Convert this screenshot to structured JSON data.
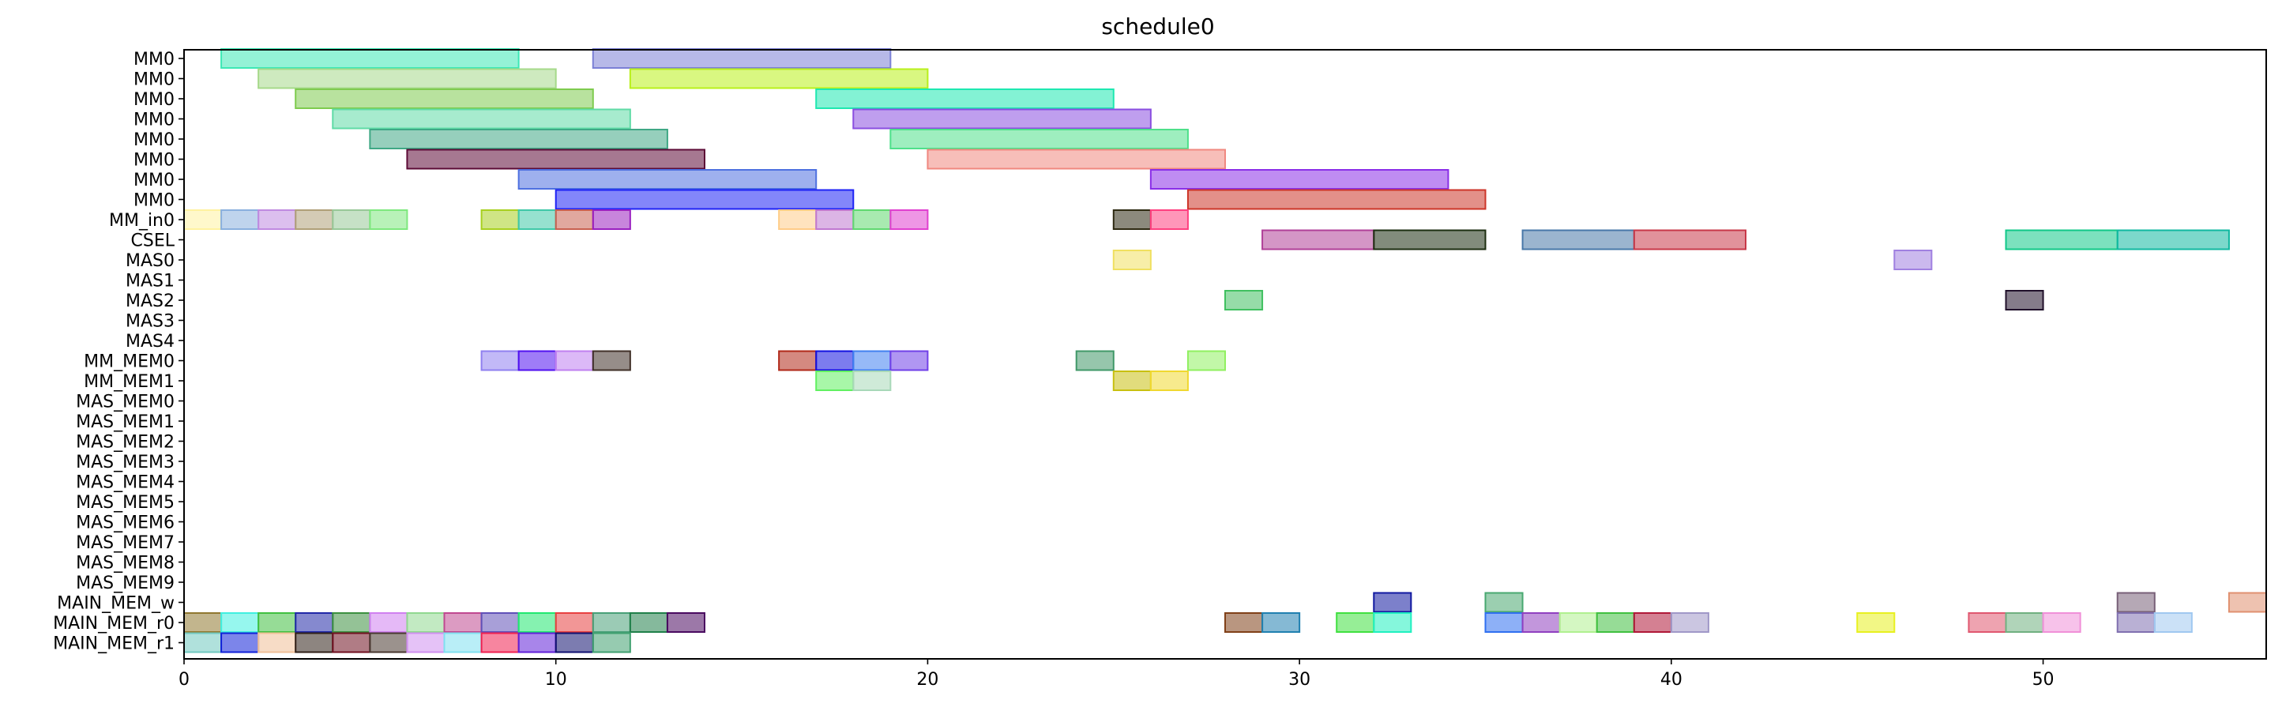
{
  "chart_data": {
    "type": "gantt",
    "title": "schedule0",
    "xlabel": "",
    "ylabel": "",
    "xlim": [
      0,
      56
    ],
    "grid": false,
    "x_ticks": [
      0,
      10,
      20,
      30,
      40,
      50
    ],
    "rows": [
      "MM0",
      "MM0",
      "MM0",
      "MM0",
      "MM0",
      "MM0",
      "MM0",
      "MM0",
      "MM_in0",
      "CSEL",
      "MAS0",
      "MAS1",
      "MAS2",
      "MAS3",
      "MAS4",
      "MM_MEM0",
      "MM_MEM1",
      "MAS_MEM0",
      "MAS_MEM1",
      "MAS_MEM2",
      "MAS_MEM3",
      "MAS_MEM4",
      "MAS_MEM5",
      "MAS_MEM6",
      "MAS_MEM7",
      "MAS_MEM8",
      "MAS_MEM9",
      "MAIN_MEM_w",
      "MAIN_MEM_r0",
      "MAIN_MEM_r1"
    ],
    "tasks": [
      {
        "row": 0,
        "start": 1,
        "end": 9,
        "color": "#3de8b5"
      },
      {
        "row": 0,
        "start": 11,
        "end": 19,
        "color": "#7b80d6"
      },
      {
        "row": 1,
        "start": 2,
        "end": 10,
        "color": "#a6d98a"
      },
      {
        "row": 1,
        "start": 12,
        "end": 20,
        "color": "#b9f01a"
      },
      {
        "row": 2,
        "start": 3,
        "end": 11,
        "color": "#7ecb4e"
      },
      {
        "row": 2,
        "start": 17,
        "end": 25,
        "color": "#1ee8b0"
      },
      {
        "row": 3,
        "start": 4,
        "end": 12,
        "color": "#5fdba6"
      },
      {
        "row": 3,
        "start": 18,
        "end": 26,
        "color": "#8a4ee0"
      },
      {
        "row": 4,
        "start": 5,
        "end": 13,
        "color": "#3fa885"
      },
      {
        "row": 4,
        "start": 19,
        "end": 27,
        "color": "#4ee08a"
      },
      {
        "row": 5,
        "start": 6,
        "end": 14,
        "color": "#5c0a36"
      },
      {
        "row": 5,
        "start": 20,
        "end": 28,
        "color": "#f08880"
      },
      {
        "row": 6,
        "start": 9,
        "end": 17,
        "color": "#4e70e0"
      },
      {
        "row": 6,
        "start": 26,
        "end": 34,
        "color": "#8a2ee8"
      },
      {
        "row": 7,
        "start": 10,
        "end": 18,
        "color": "#1e22f5"
      },
      {
        "row": 7,
        "start": 27,
        "end": 35,
        "color": "#cc3428"
      },
      {
        "row": 8,
        "start": 0,
        "end": 1,
        "color": "#fff2a0"
      },
      {
        "row": 8,
        "start": 1,
        "end": 2,
        "color": "#8ab0de"
      },
      {
        "row": 8,
        "start": 2,
        "end": 3,
        "color": "#c08ae0"
      },
      {
        "row": 8,
        "start": 3,
        "end": 4,
        "color": "#b0a078"
      },
      {
        "row": 8,
        "start": 4,
        "end": 5,
        "color": "#98c898"
      },
      {
        "row": 8,
        "start": 5,
        "end": 6,
        "color": "#7ee87e"
      },
      {
        "row": 8,
        "start": 8,
        "end": 9,
        "color": "#a8d020"
      },
      {
        "row": 8,
        "start": 9,
        "end": 10,
        "color": "#40c8a8"
      },
      {
        "row": 8,
        "start": 10,
        "end": 11,
        "color": "#c86050"
      },
      {
        "row": 8,
        "start": 11,
        "end": 12,
        "color": "#9a20c0"
      },
      {
        "row": 8,
        "start": 16,
        "end": 17,
        "color": "#ffcc88"
      },
      {
        "row": 8,
        "start": 17,
        "end": 18,
        "color": "#c078d0"
      },
      {
        "row": 8,
        "start": 18,
        "end": 19,
        "color": "#60d870"
      },
      {
        "row": 8,
        "start": 19,
        "end": 20,
        "color": "#e040d0"
      },
      {
        "row": 8,
        "start": 25,
        "end": 26,
        "color": "#2e2a12"
      },
      {
        "row": 8,
        "start": 26,
        "end": 27,
        "color": "#ff4080"
      },
      {
        "row": 9,
        "start": 29,
        "end": 32,
        "color": "#b04098"
      },
      {
        "row": 9,
        "start": 32,
        "end": 35,
        "color": "#1c2e10"
      },
      {
        "row": 9,
        "start": 36,
        "end": 39,
        "color": "#4878a8"
      },
      {
        "row": 9,
        "start": 39,
        "end": 42,
        "color": "#c83848"
      },
      {
        "row": 9,
        "start": 49,
        "end": 52,
        "color": "#10c888"
      },
      {
        "row": 9,
        "start": 52,
        "end": 55,
        "color": "#10b8a0"
      },
      {
        "row": 10,
        "start": 25,
        "end": 26,
        "color": "#f0e060"
      },
      {
        "row": 10,
        "start": 46,
        "end": 47,
        "color": "#a080e0"
      },
      {
        "row": 12,
        "start": 28,
        "end": 29,
        "color": "#40c060"
      },
      {
        "row": 12,
        "start": 49,
        "end": 50,
        "color": "#20102a"
      },
      {
        "row": 15,
        "start": 8,
        "end": 9,
        "color": "#9080f0"
      },
      {
        "row": 15,
        "start": 9,
        "end": 10,
        "color": "#5010f0"
      },
      {
        "row": 15,
        "start": 10,
        "end": 11,
        "color": "#c080f0"
      },
      {
        "row": 15,
        "start": 11,
        "end": 12,
        "color": "#403028"
      },
      {
        "row": 15,
        "start": 16,
        "end": 17,
        "color": "#b02818"
      },
      {
        "row": 15,
        "start": 17,
        "end": 18,
        "color": "#1010e0"
      },
      {
        "row": 15,
        "start": 18,
        "end": 19,
        "color": "#4080f0"
      },
      {
        "row": 15,
        "start": 19,
        "end": 20,
        "color": "#7040e8"
      },
      {
        "row": 15,
        "start": 24,
        "end": 25,
        "color": "#409868"
      },
      {
        "row": 15,
        "start": 27,
        "end": 28,
        "color": "#90f060"
      },
      {
        "row": 16,
        "start": 17,
        "end": 18,
        "color": "#60f060"
      },
      {
        "row": 16,
        "start": 18,
        "end": 19,
        "color": "#a8d8b8"
      },
      {
        "row": 16,
        "start": 25,
        "end": 26,
        "color": "#c8c010"
      },
      {
        "row": 16,
        "start": 26,
        "end": 27,
        "color": "#f0d830"
      },
      {
        "row": 27,
        "start": 32,
        "end": 33,
        "color": "#1018a0"
      },
      {
        "row": 27,
        "start": 35,
        "end": 36,
        "color": "#48a870"
      },
      {
        "row": 27,
        "start": 52,
        "end": 53,
        "color": "#786078"
      },
      {
        "row": 27,
        "start": 55,
        "end": 56,
        "color": "#e09070"
      },
      {
        "row": 28,
        "start": 0,
        "end": 1,
        "color": "#907830"
      },
      {
        "row": 28,
        "start": 1,
        "end": 2,
        "color": "#40f0e0"
      },
      {
        "row": 28,
        "start": 2,
        "end": 3,
        "color": "#40c040"
      },
      {
        "row": 28,
        "start": 3,
        "end": 4,
        "color": "#2028a8"
      },
      {
        "row": 28,
        "start": 4,
        "end": 5,
        "color": "#3c9040"
      },
      {
        "row": 28,
        "start": 5,
        "end": 6,
        "color": "#d080f0"
      },
      {
        "row": 28,
        "start": 6,
        "end": 7,
        "color": "#90d890"
      },
      {
        "row": 28,
        "start": 7,
        "end": 8,
        "color": "#c04890"
      },
      {
        "row": 28,
        "start": 8,
        "end": 9,
        "color": "#6050b8"
      },
      {
        "row": 28,
        "start": 9,
        "end": 10,
        "color": "#20e870"
      },
      {
        "row": 28,
        "start": 10,
        "end": 11,
        "color": "#e84040"
      },
      {
        "row": 28,
        "start": 11,
        "end": 12,
        "color": "#48a078"
      },
      {
        "row": 28,
        "start": 12,
        "end": 13,
        "color": "#20804a"
      },
      {
        "row": 28,
        "start": 13,
        "end": 14,
        "color": "#4a0a60"
      },
      {
        "row": 28,
        "start": 28,
        "end": 29,
        "color": "#804018"
      },
      {
        "row": 28,
        "start": 29,
        "end": 30,
        "color": "#2080b0"
      },
      {
        "row": 28,
        "start": 31,
        "end": 32,
        "color": "#40e040"
      },
      {
        "row": 28,
        "start": 32,
        "end": 33,
        "color": "#20f0c0"
      },
      {
        "row": 28,
        "start": 35,
        "end": 36,
        "color": "#3070f0"
      },
      {
        "row": 28,
        "start": 36,
        "end": 37,
        "color": "#9040c0"
      },
      {
        "row": 28,
        "start": 37,
        "end": 38,
        "color": "#b0f090"
      },
      {
        "row": 28,
        "start": 38,
        "end": 39,
        "color": "#40c040"
      },
      {
        "row": 28,
        "start": 39,
        "end": 40,
        "color": "#b01838"
      },
      {
        "row": 28,
        "start": 40,
        "end": 41,
        "color": "#a098c8"
      },
      {
        "row": 28,
        "start": 45,
        "end": 46,
        "color": "#e8f020"
      },
      {
        "row": 28,
        "start": 48,
        "end": 49,
        "color": "#e05870"
      },
      {
        "row": 28,
        "start": 49,
        "end": 50,
        "color": "#70b080"
      },
      {
        "row": 28,
        "start": 50,
        "end": 51,
        "color": "#f090d8"
      },
      {
        "row": 28,
        "start": 52,
        "end": 53,
        "color": "#8070b0"
      },
      {
        "row": 28,
        "start": 53,
        "end": 54,
        "color": "#a0c8f0"
      },
      {
        "row": 29,
        "start": 0,
        "end": 1,
        "color": "#70c8c0"
      },
      {
        "row": 29,
        "start": 1,
        "end": 2,
        "color": "#1020d8"
      },
      {
        "row": 29,
        "start": 2,
        "end": 3,
        "color": "#f0c098"
      },
      {
        "row": 29,
        "start": 3,
        "end": 4,
        "color": "#302018"
      },
      {
        "row": 29,
        "start": 4,
        "end": 5,
        "color": "#701020"
      },
      {
        "row": 29,
        "start": 5,
        "end": 6,
        "color": "#483830"
      },
      {
        "row": 29,
        "start": 6,
        "end": 7,
        "color": "#d090f0"
      },
      {
        "row": 29,
        "start": 7,
        "end": 8,
        "color": "#80e0f0"
      },
      {
        "row": 29,
        "start": 8,
        "end": 9,
        "color": "#f02050"
      },
      {
        "row": 29,
        "start": 9,
        "end": 10,
        "color": "#6020d8"
      },
      {
        "row": 29,
        "start": 10,
        "end": 11,
        "color": "#101070"
      },
      {
        "row": 29,
        "start": 11,
        "end": 12,
        "color": "#40a070"
      }
    ]
  }
}
